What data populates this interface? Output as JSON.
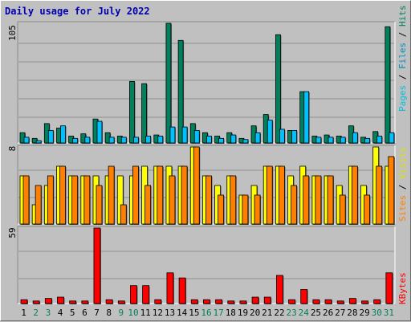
{
  "title": "Daily usage for July 2022",
  "colors": {
    "background": "#c0c0c0",
    "panel": "#c0c0c0",
    "hits": "#00805c",
    "files": "#00c0ff",
    "pages": "#00c0e0",
    "visits": "#ffff00",
    "sites": "#ff8000",
    "kbytes": "#ff0000",
    "title": "#0000b0",
    "weekend_day": "#00805c",
    "weekday_day": "#000000"
  },
  "chart_data": [
    {
      "type": "bar",
      "name": "hits-files-pages",
      "categories": [
        "1",
        "2",
        "3",
        "4",
        "5",
        "6",
        "7",
        "8",
        "9",
        "10",
        "11",
        "12",
        "13",
        "14",
        "15",
        "16",
        "17",
        "18",
        "19",
        "20",
        "21",
        "22",
        "23",
        "24",
        "25",
        "26",
        "27",
        "28",
        "29",
        "30",
        "31"
      ],
      "weekend_days": [
        "2",
        "3",
        "9",
        "10",
        "16",
        "17",
        "23",
        "24",
        "30",
        "31"
      ],
      "ytick": "105",
      "ylim": [
        0,
        105
      ],
      "legend": [
        "Pages",
        "Files",
        "Hits"
      ],
      "series": [
        {
          "name": "Hits",
          "values": [
            9,
            4,
            17,
            13,
            6,
            8,
            21,
            9,
            6,
            54,
            52,
            7,
            105,
            90,
            17,
            9,
            6,
            9,
            4,
            15,
            25,
            95,
            11,
            45,
            6,
            7,
            6,
            15,
            5,
            10,
            102
          ]
        },
        {
          "name": "Files",
          "values": [
            5,
            2,
            11,
            15,
            4,
            5,
            19,
            5,
            5,
            5,
            6,
            6,
            14,
            14,
            11,
            6,
            4,
            7,
            3,
            9,
            20,
            12,
            11,
            45,
            5,
            5,
            5,
            9,
            4,
            6,
            9
          ]
        },
        {
          "name": "Pages",
          "values": [
            5,
            2,
            11,
            15,
            4,
            5,
            19,
            5,
            5,
            5,
            6,
            6,
            14,
            14,
            11,
            6,
            4,
            7,
            3,
            9,
            20,
            12,
            11,
            45,
            5,
            5,
            5,
            9,
            4,
            6,
            9
          ]
        }
      ]
    },
    {
      "type": "bar",
      "name": "visits-sites",
      "categories": [
        "1",
        "2",
        "3",
        "4",
        "5",
        "6",
        "7",
        "8",
        "9",
        "10",
        "11",
        "12",
        "13",
        "14",
        "15",
        "16",
        "17",
        "18",
        "19",
        "20",
        "21",
        "22",
        "23",
        "24",
        "25",
        "26",
        "27",
        "28",
        "29",
        "30",
        "31"
      ],
      "ytick": "8",
      "ylim": [
        0,
        8
      ],
      "legend": [
        "Sites",
        "Visits"
      ],
      "series": [
        {
          "name": "Visits",
          "values": [
            5,
            2,
            4,
            6,
            5,
            5,
            5,
            5,
            5,
            5,
            6,
            6,
            6,
            6,
            8,
            5,
            4,
            5,
            3,
            4,
            6,
            6,
            5,
            6,
            5,
            5,
            4,
            6,
            4,
            8,
            6
          ]
        },
        {
          "name": "Sites",
          "values": [
            5,
            4,
            5,
            6,
            5,
            5,
            4,
            6,
            2,
            6,
            4,
            6,
            5,
            6,
            8,
            5,
            3,
            5,
            3,
            3,
            6,
            6,
            4,
            5,
            5,
            5,
            3,
            6,
            3,
            6,
            7
          ]
        }
      ]
    },
    {
      "type": "bar",
      "name": "kbytes",
      "categories": [
        "1",
        "2",
        "3",
        "4",
        "5",
        "6",
        "7",
        "8",
        "9",
        "10",
        "11",
        "12",
        "13",
        "14",
        "15",
        "16",
        "17",
        "18",
        "19",
        "20",
        "21",
        "22",
        "23",
        "24",
        "25",
        "26",
        "27",
        "28",
        "29",
        "30",
        "31"
      ],
      "ytick": "59",
      "ylim": [
        0,
        59
      ],
      "legend": [
        "KBytes"
      ],
      "series": [
        {
          "name": "KBytes",
          "values": [
            3,
            2,
            4,
            5,
            2,
            2,
            59,
            3,
            2,
            14,
            14,
            3,
            24,
            20,
            3,
            3,
            3,
            2,
            2,
            5,
            5,
            22,
            3,
            11,
            3,
            3,
            2,
            4,
            2,
            3,
            24
          ]
        }
      ]
    }
  ]
}
